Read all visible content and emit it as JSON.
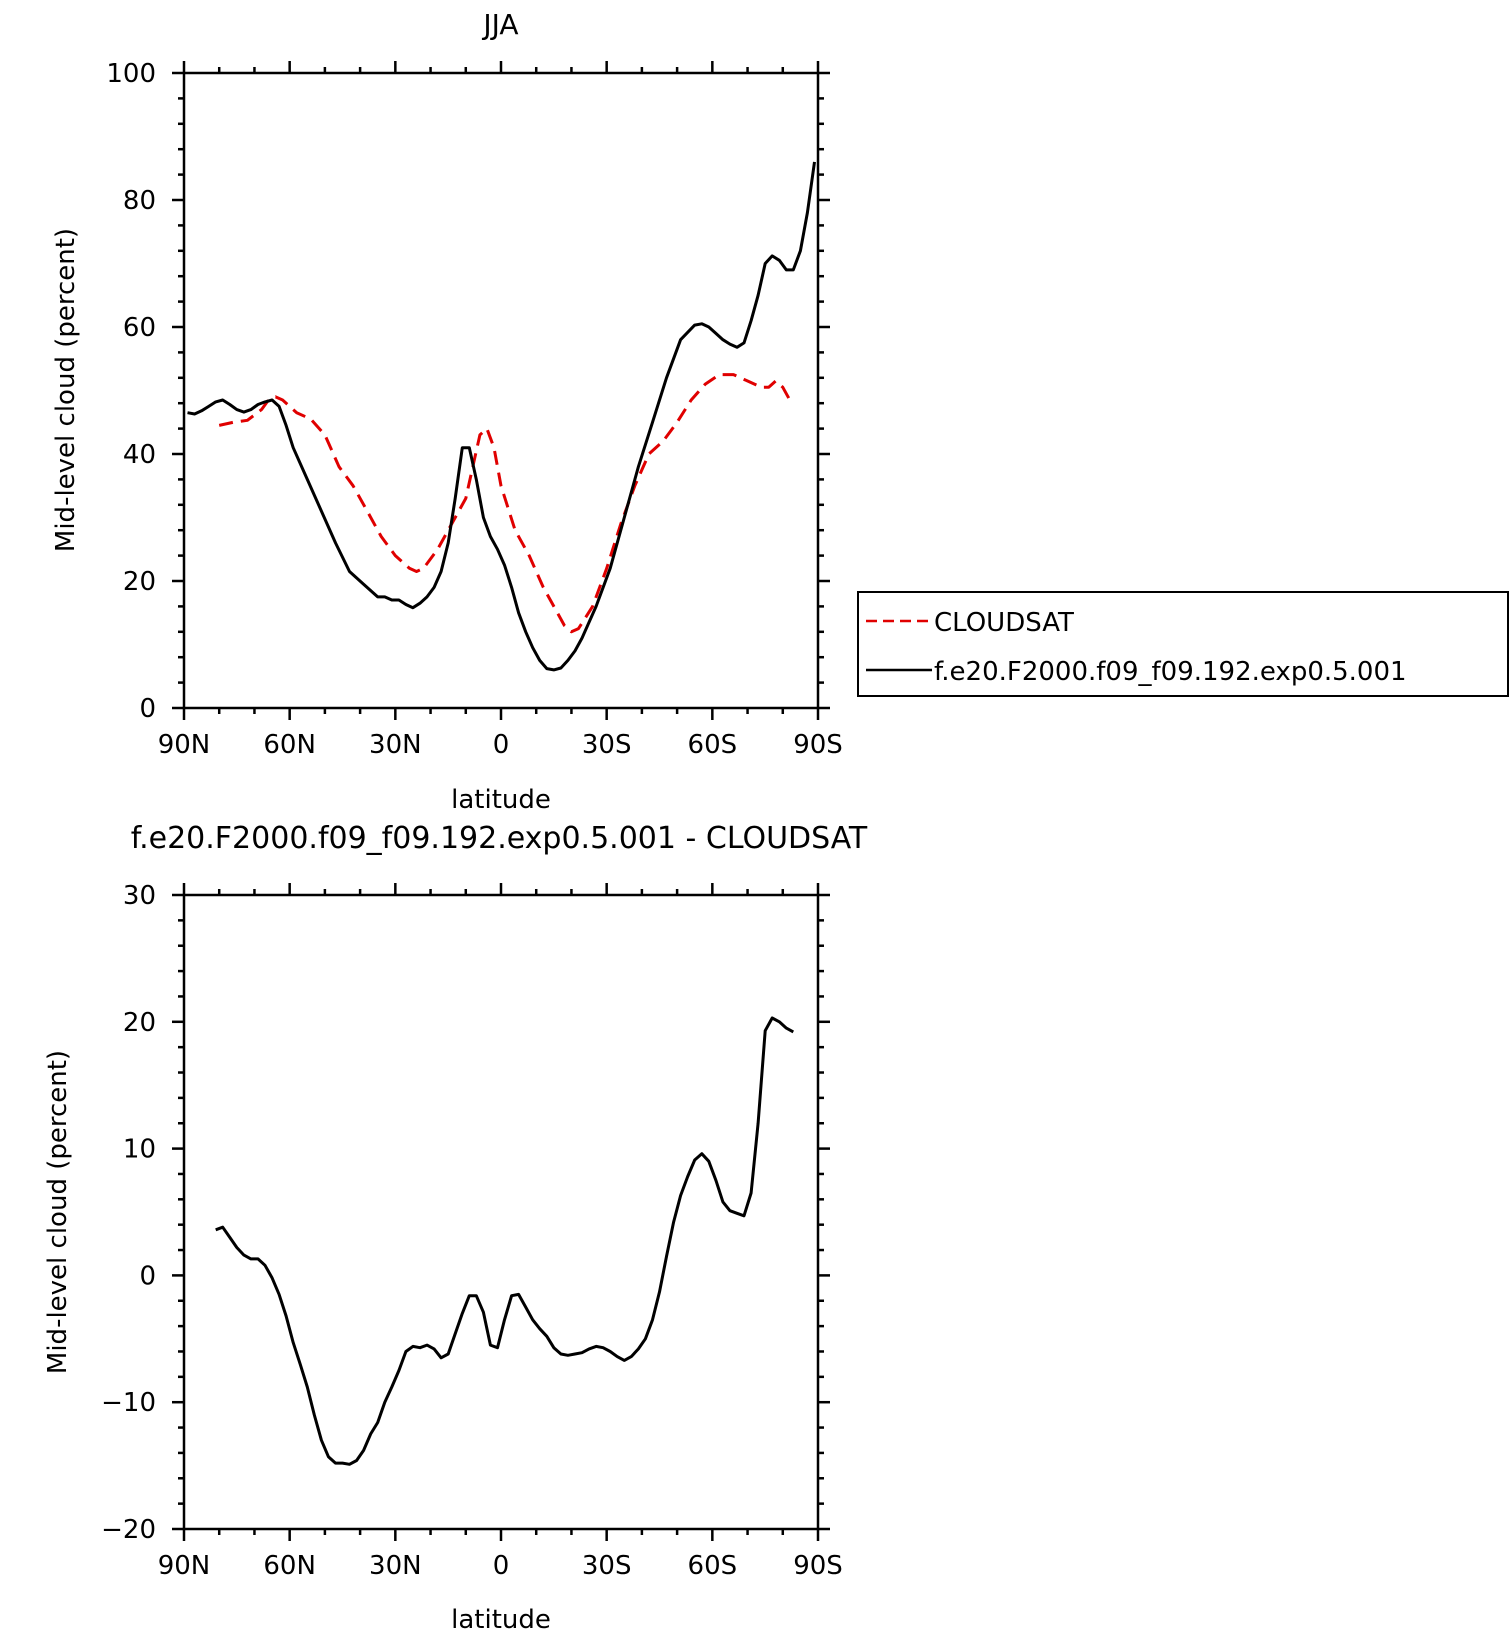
{
  "chart_data": [
    {
      "type": "line",
      "title": "JJA",
      "xlabel": "latitude",
      "ylabel": "Mid-level cloud (percent)",
      "xlim": [
        90,
        -90
      ],
      "ylim": [
        0,
        100
      ],
      "xticks": [
        {
          "value": 90,
          "label": "90N"
        },
        {
          "value": 60,
          "label": "60N"
        },
        {
          "value": 30,
          "label": "30N"
        },
        {
          "value": 0,
          "label": "0"
        },
        {
          "value": -30,
          "label": "30S"
        },
        {
          "value": -60,
          "label": "60S"
        },
        {
          "value": -90,
          "label": "90S"
        }
      ],
      "yticks": [
        0,
        20,
        40,
        60,
        80,
        100
      ],
      "legend_position": "right",
      "grid": false,
      "series": [
        {
          "name": "CLOUDSAT",
          "color": "#e00000",
          "dash": "dashed",
          "x": [
            80,
            76,
            72,
            68,
            66,
            64,
            62,
            58,
            54,
            50,
            46,
            42,
            38,
            34,
            30,
            26,
            24,
            22,
            18,
            14,
            10,
            8,
            6,
            4,
            2,
            0,
            -4,
            -8,
            -12,
            -16,
            -18,
            -20,
            -22,
            -26,
            -30,
            -34,
            -38,
            -42,
            -46,
            -50,
            -54,
            -58,
            -62,
            -66,
            -70,
            -74,
            -76,
            -78,
            -80,
            -82
          ],
          "y": [
            44.5,
            45,
            45.3,
            47,
            48.5,
            49,
            48.5,
            46.5,
            45.5,
            43,
            38,
            35,
            31,
            27,
            24,
            22,
            21.5,
            22,
            25,
            29,
            33,
            38,
            43,
            44,
            41,
            35,
            28,
            24,
            19,
            15,
            13,
            12,
            12.5,
            16,
            22,
            29,
            35,
            40,
            42,
            45,
            48.5,
            51,
            52.5,
            52.5,
            51.5,
            50.5,
            50.5,
            51.5,
            50.5,
            48.5
          ]
        },
        {
          "name": "f.e20.F2000.f09_f09.192.exp0.5.001",
          "color": "#000000",
          "dash": "solid",
          "x": [
            89,
            87,
            85,
            83,
            81,
            79,
            77,
            75,
            73,
            71,
            69,
            67,
            65,
            63,
            61,
            59,
            55,
            51,
            47,
            43,
            39,
            35,
            33,
            31,
            29,
            27,
            25,
            23,
            21,
            19,
            17,
            15,
            13,
            11,
            9,
            7,
            5,
            3,
            1,
            -1,
            -3,
            -5,
            -7,
            -9,
            -11,
            -13,
            -15,
            -17,
            -19,
            -21,
            -23,
            -27,
            -31,
            -35,
            -39,
            -43,
            -47,
            -51,
            -55,
            -57,
            -59,
            -61,
            -63,
            -65,
            -67,
            -69,
            -71,
            -73,
            -75,
            -77,
            -79,
            -81,
            -83,
            -85,
            -87,
            -89
          ],
          "y": [
            46.5,
            46.3,
            46.8,
            47.5,
            48.2,
            48.5,
            47.8,
            47,
            46.6,
            47,
            47.8,
            48.2,
            48.5,
            47.5,
            44.5,
            41,
            36,
            31,
            26,
            21.5,
            19.5,
            17.5,
            17.5,
            17,
            17,
            16.3,
            15.8,
            16.5,
            17.5,
            19,
            21.5,
            26,
            33,
            41,
            41,
            36,
            30,
            27,
            25,
            22.5,
            19,
            15,
            12,
            9.5,
            7.5,
            6.2,
            6,
            6.3,
            7.5,
            9,
            11,
            16,
            22,
            30,
            38,
            45,
            52,
            58,
            60.3,
            60.5,
            60,
            59,
            58,
            57.3,
            56.8,
            57.5,
            61,
            65,
            70,
            71.2,
            70.5,
            69,
            69,
            72,
            78,
            86
          ]
        }
      ]
    },
    {
      "type": "line",
      "title": "f.e20.F2000.f09_f09.192.exp0.5.001 - CLOUDSAT",
      "xlabel": "latitude",
      "ylabel": "Mid-level cloud (percent)",
      "xlim": [
        90,
        -90
      ],
      "ylim": [
        -20,
        30
      ],
      "xticks": [
        {
          "value": 90,
          "label": "90N"
        },
        {
          "value": 60,
          "label": "60N"
        },
        {
          "value": 30,
          "label": "30N"
        },
        {
          "value": 0,
          "label": "0"
        },
        {
          "value": -30,
          "label": "30S"
        },
        {
          "value": -60,
          "label": "60S"
        },
        {
          "value": -90,
          "label": "90S"
        }
      ],
      "yticks": [
        -20,
        -10,
        0,
        10,
        20,
        30
      ],
      "grid": false,
      "series": [
        {
          "color": "#000000",
          "dash": "solid",
          "x": [
            81,
            79,
            77,
            75,
            73,
            71,
            69,
            67,
            65,
            63,
            61,
            59,
            57,
            55,
            53,
            51,
            49,
            47,
            45,
            43,
            41,
            39,
            37,
            35,
            33,
            31,
            29,
            27,
            25,
            23,
            21,
            19,
            17,
            15,
            13,
            11,
            9,
            7,
            5,
            3,
            1,
            -1,
            -3,
            -5,
            -7,
            -9,
            -11,
            -13,
            -15,
            -17,
            -19,
            -21,
            -23,
            -25,
            -27,
            -29,
            -31,
            -33,
            -35,
            -37,
            -39,
            -41,
            -43,
            -45,
            -47,
            -49,
            -51,
            -53,
            -55,
            -57,
            -59,
            -61,
            -63,
            -65,
            -67,
            -69,
            -71,
            -73,
            -75,
            -77,
            -79,
            -81,
            -83
          ],
          "y": [
            3.6,
            3.8,
            3,
            2.2,
            1.6,
            1.3,
            1.3,
            0.8,
            -0.2,
            -1.5,
            -3.2,
            -5.3,
            -7,
            -8.8,
            -11,
            -13,
            -14.3,
            -14.8,
            -14.8,
            -14.9,
            -14.6,
            -13.8,
            -12.5,
            -11.6,
            -10,
            -8.8,
            -7.5,
            -6,
            -5.6,
            -5.7,
            -5.5,
            -5.8,
            -6.5,
            -6.2,
            -4.6,
            -3,
            -1.6,
            -1.6,
            -2.9,
            -5.5,
            -5.7,
            -3.5,
            -1.6,
            -1.5,
            -2.5,
            -3.5,
            -4.2,
            -4.8,
            -5.7,
            -6.2,
            -6.3,
            -6.2,
            -6.1,
            -5.8,
            -5.6,
            -5.7,
            -6,
            -6.4,
            -6.7,
            -6.4,
            -5.8,
            -5,
            -3.5,
            -1.3,
            1.5,
            4.2,
            6.3,
            7.8,
            9.1,
            9.6,
            9,
            7.5,
            5.8,
            5.1,
            4.9,
            4.7,
            6.5,
            12,
            19.3,
            20.3,
            20,
            19.5,
            19.2
          ]
        }
      ]
    }
  ]
}
